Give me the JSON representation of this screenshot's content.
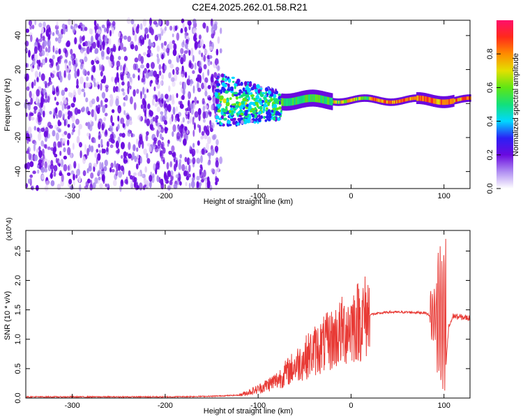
{
  "page_title": "C2E4.2025.262.01.58.R21",
  "colors": {
    "purple_dark": "#6a0adf",
    "purple_light": "#e3cff8",
    "snr_line": "#e83a35",
    "axis": "#000000"
  },
  "chart_data": [
    {
      "type": "heatmap",
      "title": "C2E4.2025.262.01.58.R21",
      "xlabel": "Height of straight line (km)",
      "ylabel": "Frequency (Hz)",
      "xlim": [
        -350,
        128
      ],
      "ylim": [
        -50,
        49
      ],
      "x_ticks": [
        -300,
        -200,
        -100,
        0,
        100
      ],
      "y_ticks": [
        -40,
        -20,
        0,
        20,
        40
      ],
      "x_tick_labels": [
        "-300",
        "-200",
        "-100",
        "0",
        "100"
      ],
      "y_tick_labels": [
        "-40",
        "-20",
        "0",
        "20",
        "40"
      ],
      "regions": [
        {
          "name": "noise",
          "x": [
            -350,
            -140
          ],
          "y": [
            -50,
            49
          ],
          "amplitude": 0.15
        },
        {
          "name": "onset",
          "x": [
            -145,
            -75
          ],
          "center_y": 2,
          "halfwidth": 8,
          "amplitude": 0.35
        },
        {
          "name": "signal",
          "x": [
            -75,
            128
          ],
          "center_y": 2,
          "halfwidth": 3,
          "amplitude": 0.9
        }
      ],
      "colorbar": {
        "label": "Normalized spectral amplitude",
        "range": [
          0,
          1
        ],
        "ticks": [
          0.0,
          0.2,
          0.4,
          0.6,
          0.8
        ],
        "tick_labels": [
          "0.0",
          "0.2",
          "0.4",
          "0.6",
          "0.8"
        ],
        "colors": [
          "#ffffff",
          "#b08ef2",
          "#6a0adf",
          "#2b20f5",
          "#00d8ff",
          "#13e07a",
          "#5fe614",
          "#e3e000",
          "#ff8c00",
          "#ff2a1a",
          "#ff0f6a"
        ]
      }
    },
    {
      "type": "line",
      "xlabel": "Height of straight line (km)",
      "ylabel": "SNR (10 * v/v)",
      "scale_label": "(x10^4)",
      "xlim": [
        -350,
        128
      ],
      "ylim": [
        0,
        2.85
      ],
      "x_ticks": [
        -300,
        -200,
        -100,
        0,
        100
      ],
      "y_ticks": [
        0.0,
        0.5,
        1.0,
        1.5,
        2.0,
        2.5
      ],
      "x_tick_labels": [
        "-300",
        "-200",
        "-100",
        "0",
        "100"
      ],
      "y_tick_labels": [
        "0.0",
        "0.5",
        "1.0",
        "1.5",
        "2.0",
        "2.5"
      ],
      "series": [
        {
          "name": "SNR",
          "x": [
            -350,
            -300,
            -250,
            -200,
            -150,
            -120,
            -100,
            -80,
            -60,
            -40,
            -20,
            0,
            20,
            40,
            60,
            80,
            85,
            90,
            95,
            100,
            105,
            110,
            115,
            128
          ],
          "values": [
            0.02,
            0.02,
            0.02,
            0.02,
            0.03,
            0.05,
            0.15,
            0.3,
            0.55,
            0.8,
            1.0,
            1.25,
            1.42,
            1.46,
            1.46,
            1.45,
            1.4,
            1.6,
            2.4,
            0.1,
            1.2,
            1.4,
            1.38,
            1.36
          ]
        }
      ]
    }
  ]
}
